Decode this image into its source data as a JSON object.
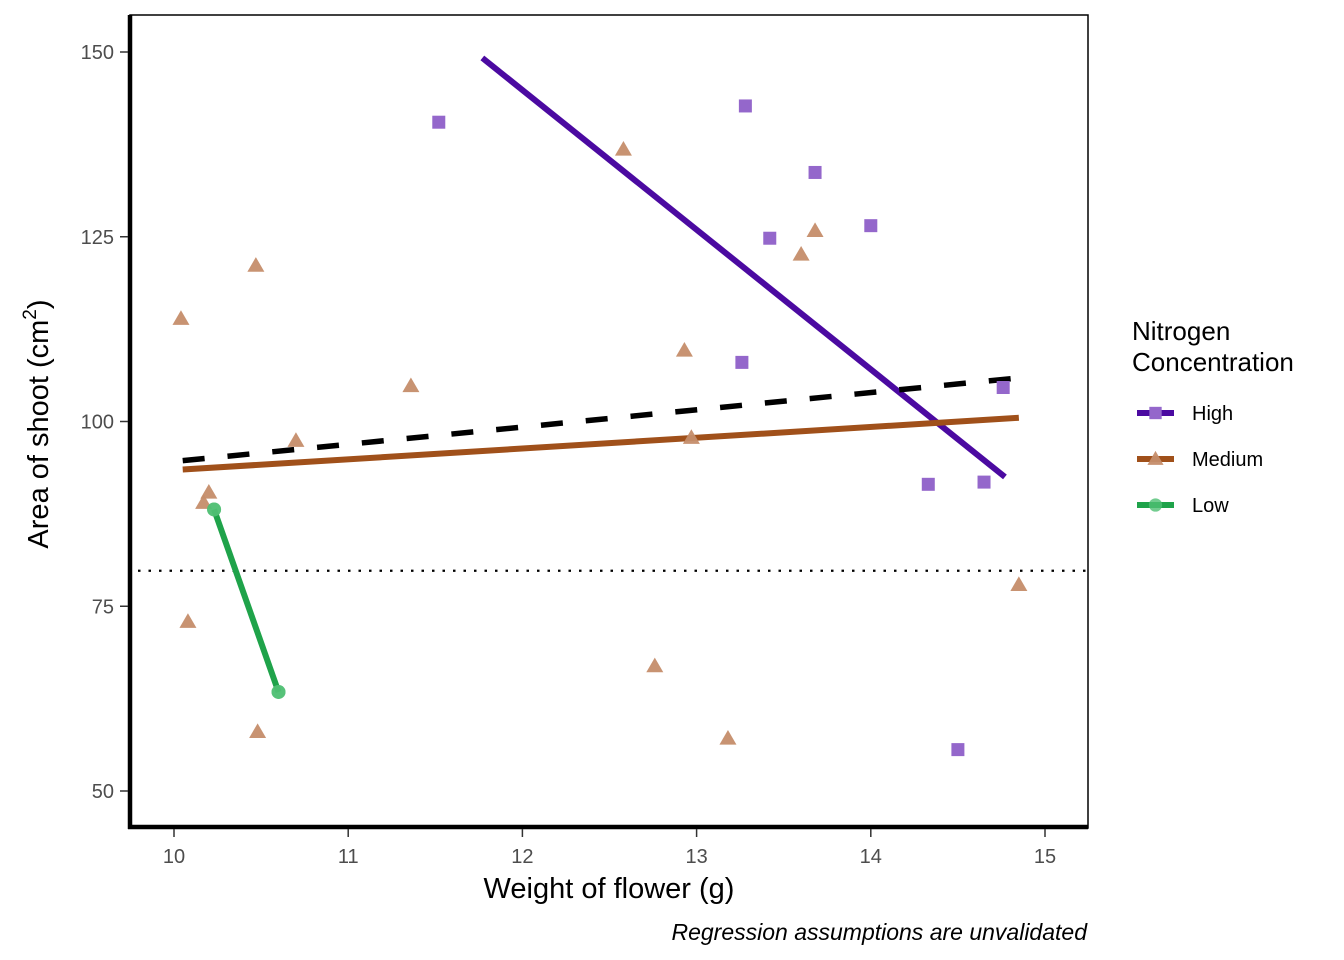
{
  "chart_data": {
    "type": "scatter",
    "title": "",
    "xlabel": "Weight of flower (g)",
    "ylabel_prefix": "Area of shoot (cm",
    "ylabel_sup": "2",
    "ylabel_suffix": ")",
    "caption": "Regression assumptions are unvalidated",
    "xlim": [
      9.75,
      15.25
    ],
    "ylim": [
      45,
      155
    ],
    "xticks": [
      10,
      11,
      12,
      13,
      14,
      15
    ],
    "yticks": [
      50,
      75,
      100,
      125,
      150
    ],
    "xtick_labels": [
      "10",
      "11",
      "12",
      "13",
      "14",
      "15"
    ],
    "ytick_labels": [
      "50",
      "75",
      "100",
      "125",
      "150"
    ],
    "grid": false,
    "legend": {
      "title_line1": "Nitrogen",
      "title_line2": "Concentration",
      "placement": "right",
      "entries": [
        "High",
        "Medium",
        "Low"
      ]
    },
    "series": [
      {
        "name": "High",
        "marker": "square",
        "point_color": "#9467cb",
        "line_color": "#4b0aa1",
        "points": [
          [
            11.52,
            140.5
          ],
          [
            13.28,
            142.7
          ],
          [
            13.68,
            133.7
          ],
          [
            13.42,
            124.8
          ],
          [
            14.0,
            126.5
          ],
          [
            13.26,
            108.0
          ],
          [
            14.76,
            104.6
          ],
          [
            14.33,
            91.5
          ],
          [
            14.65,
            91.8
          ],
          [
            14.5,
            55.6
          ]
        ],
        "fit": [
          [
            11.77,
            149.2
          ],
          [
            14.77,
            92.5
          ]
        ]
      },
      {
        "name": "Medium",
        "marker": "triangle",
        "point_color": "#c58d6a",
        "line_color": "#a0501a",
        "points": [
          [
            10.04,
            113.9
          ],
          [
            10.47,
            121.1
          ],
          [
            10.08,
            72.9
          ],
          [
            10.2,
            90.4
          ],
          [
            10.17,
            89.0
          ],
          [
            10.7,
            97.4
          ],
          [
            10.48,
            58.0
          ],
          [
            11.36,
            104.8
          ],
          [
            12.58,
            136.8
          ],
          [
            12.93,
            109.6
          ],
          [
            12.97,
            97.8
          ],
          [
            12.76,
            66.9
          ],
          [
            13.18,
            57.1
          ],
          [
            13.6,
            122.6
          ],
          [
            13.68,
            125.8
          ],
          [
            14.85,
            77.9
          ]
        ],
        "fit": [
          [
            10.05,
            93.5
          ],
          [
            14.85,
            100.5
          ]
        ]
      },
      {
        "name": "Low",
        "marker": "circle",
        "point_color": "#4fbf73",
        "line_color": "#1fa34a",
        "points": [
          [
            10.23,
            88.1
          ],
          [
            10.6,
            63.4
          ]
        ],
        "fit": [
          [
            10.23,
            88.1
          ],
          [
            10.6,
            63.4
          ]
        ]
      }
    ],
    "overall_fit": {
      "style": "dashed",
      "color": "#000000",
      "line": [
        [
          10.05,
          94.7
        ],
        [
          14.85,
          105.9
        ]
      ]
    },
    "reference_line": {
      "style": "dotted",
      "orientation": "horizontal",
      "y": 79.8,
      "color": "#000000"
    }
  }
}
